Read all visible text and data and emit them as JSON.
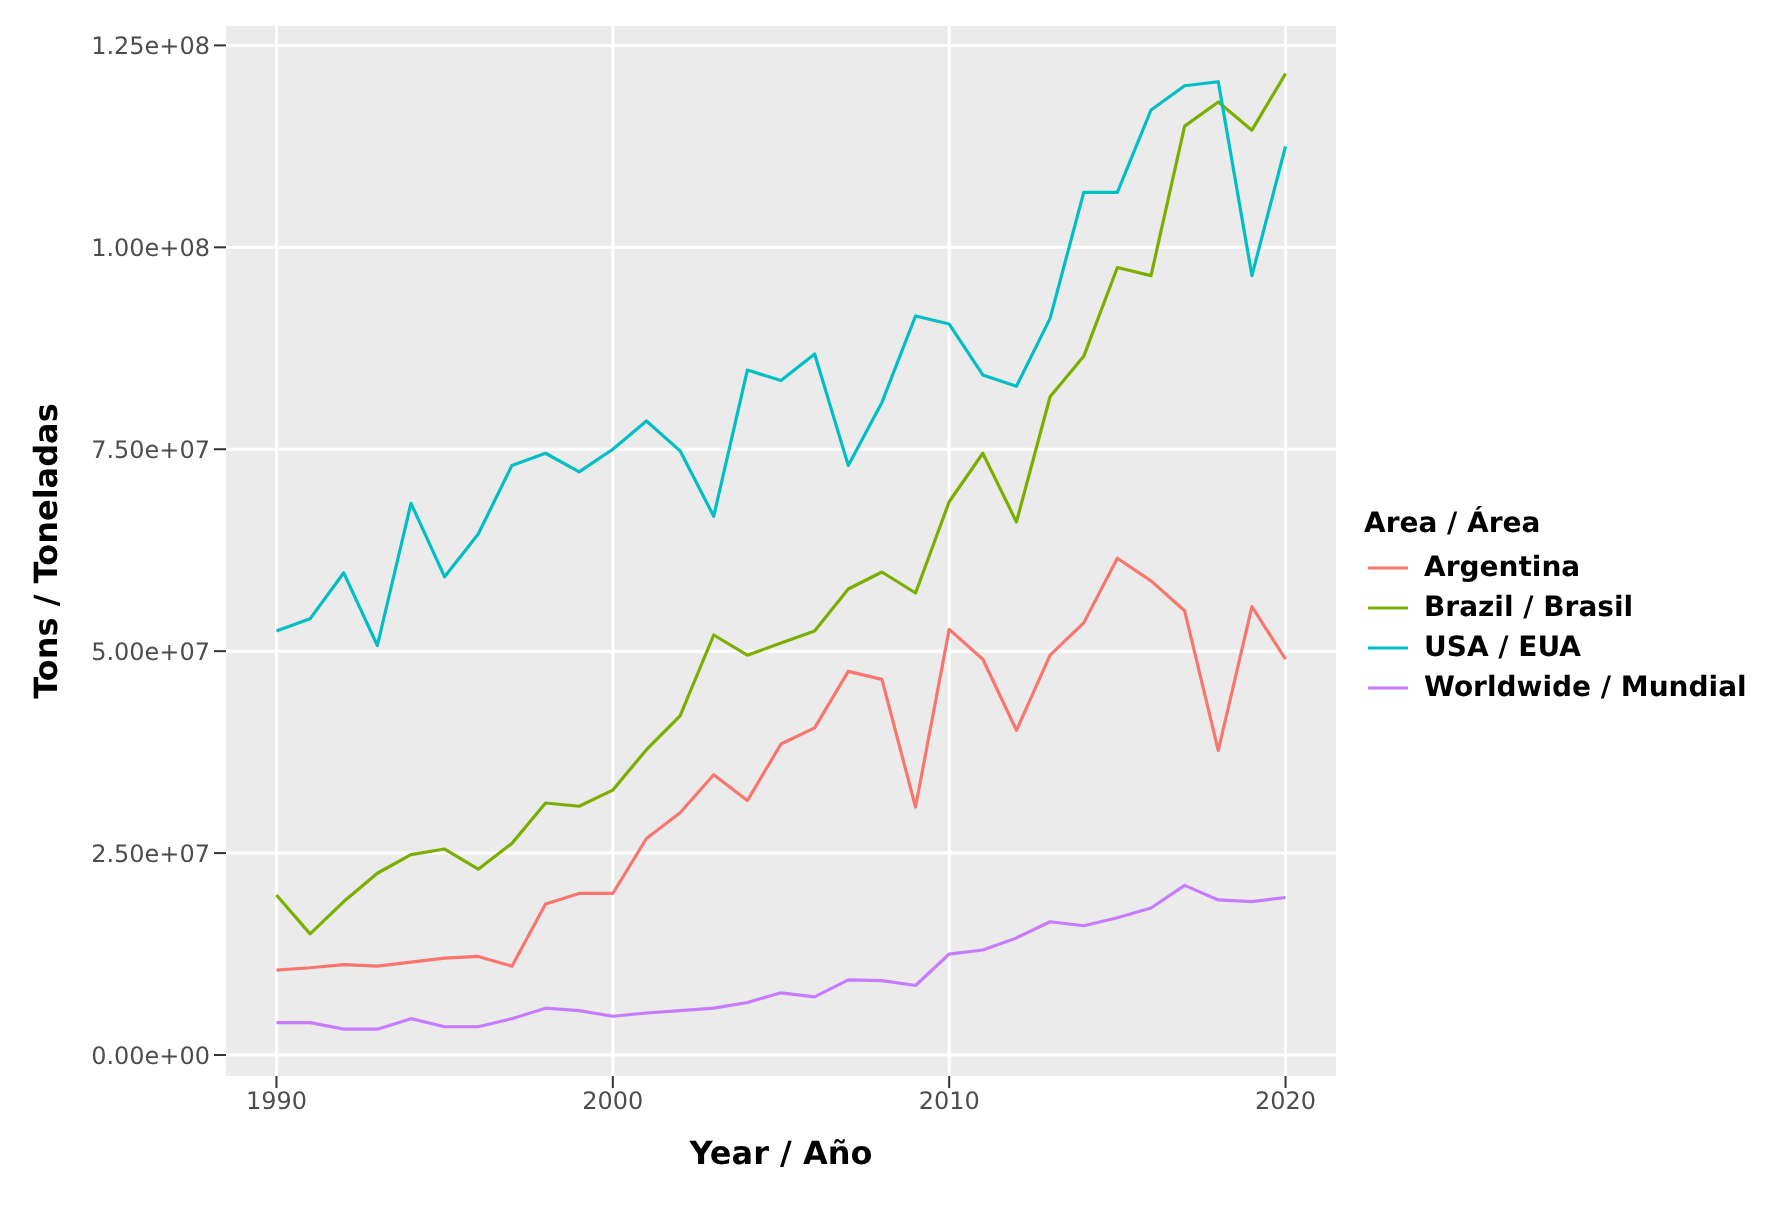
{
  "chart_data": {
    "type": "line",
    "xlabel": "Year / Año",
    "ylabel": "Tons / Toneladas",
    "legend_title": "Area / Área",
    "legend": "right",
    "grid": true,
    "marker": "none",
    "line_style": "solid",
    "x": [
      1990,
      1991,
      1992,
      1993,
      1994,
      1995,
      1996,
      1997,
      1998,
      1999,
      2000,
      2001,
      2002,
      2003,
      2004,
      2005,
      2006,
      2007,
      2008,
      2009,
      2010,
      2011,
      2012,
      2013,
      2014,
      2015,
      2016,
      2017,
      2018,
      2019,
      2020
    ],
    "xlim": [
      1988.5,
      2021.5
    ],
    "xticks": [
      1990,
      2000,
      2010,
      2020
    ],
    "ylim": [
      -2600000,
      127400000
    ],
    "yticks": [
      {
        "value": 0,
        "label": "0.00e+00"
      },
      {
        "value": 25000000,
        "label": "2.50e+07"
      },
      {
        "value": 50000000,
        "label": "5.00e+07"
      },
      {
        "value": 75000000,
        "label": "7.50e+07"
      },
      {
        "value": 100000000,
        "label": "1.00e+08"
      },
      {
        "value": 125000000,
        "label": "1.25e+08"
      }
    ],
    "series": [
      {
        "name": "Argentina",
        "color": "#f8766d",
        "values": [
          10500000,
          10800000,
          11200000,
          11000000,
          11500000,
          12000000,
          12200000,
          11000000,
          18700000,
          20000000,
          20000000,
          26800000,
          30000000,
          34700000,
          31500000,
          38500000,
          40500000,
          47500000,
          46500000,
          30700000,
          52700000,
          49000000,
          40200000,
          49500000,
          53500000,
          61500000,
          58700000,
          55000000,
          37700000,
          55500000,
          49000000
        ]
      },
      {
        "name": "Brazil / Brasil",
        "color": "#7cae00",
        "values": [
          19800000,
          15000000,
          19000000,
          22500000,
          24800000,
          25500000,
          23000000,
          26200000,
          31200000,
          30800000,
          32800000,
          37800000,
          42000000,
          52000000,
          49500000,
          51000000,
          52500000,
          57700000,
          59800000,
          57200000,
          68500000,
          74500000,
          66000000,
          81500000,
          86500000,
          97500000,
          96500000,
          115000000,
          118000000,
          114500000,
          121500000
        ]
      },
      {
        "name": "USA / EUA",
        "color": "#00bfc4",
        "values": [
          52500000,
          54000000,
          59700000,
          50700000,
          68300000,
          59200000,
          64500000,
          73000000,
          74500000,
          72200000,
          75000000,
          78500000,
          74800000,
          66700000,
          84800000,
          83500000,
          86800000,
          73000000,
          80800000,
          91500000,
          90500000,
          84200000,
          82800000,
          91200000,
          106800000,
          106800000,
          117000000,
          120000000,
          120500000,
          96500000,
          112500000
        ]
      },
      {
        "name": "Worldwide / Mundial",
        "color": "#c77cff",
        "values": [
          4000000,
          4000000,
          3200000,
          3200000,
          4500000,
          3500000,
          3500000,
          4500000,
          5800000,
          5500000,
          4800000,
          5200000,
          5500000,
          5800000,
          6500000,
          7700000,
          7200000,
          9300000,
          9200000,
          8600000,
          12500000,
          13000000,
          14500000,
          16500000,
          16000000,
          17000000,
          18200000,
          21000000,
          19200000,
          19000000,
          19500000
        ]
      }
    ]
  }
}
